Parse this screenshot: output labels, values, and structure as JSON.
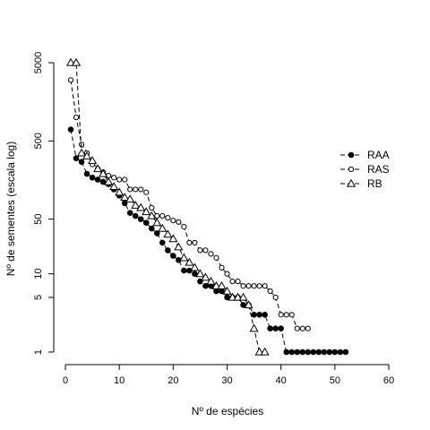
{
  "chart_data": {
    "type": "scatter",
    "xlabel": "Nº de espécies",
    "ylabel": "Nº de sementes (escala log)",
    "xlim": [
      0,
      62
    ],
    "ylim": [
      0.8,
      7000
    ],
    "log_y": true,
    "x_ticks": [
      0,
      10,
      20,
      30,
      40,
      50,
      60
    ],
    "y_ticks": [
      1,
      5,
      10,
      50,
      500,
      5000
    ],
    "grid": false,
    "legend_position": "right",
    "series": [
      {
        "name": "RAA",
        "marker": "filled-circle",
        "x": [
          1,
          2,
          3,
          4,
          5,
          6,
          7,
          8,
          9,
          10,
          11,
          12,
          13,
          14,
          15,
          16,
          17,
          18,
          19,
          20,
          21,
          22,
          23,
          24,
          25,
          26,
          27,
          28,
          29,
          30,
          31,
          32,
          33,
          34,
          35,
          36,
          37,
          38,
          39,
          40,
          41,
          42,
          43,
          44,
          45,
          46,
          47,
          48,
          49,
          50,
          51,
          52
        ],
        "y": [
          700,
          300,
          270,
          190,
          170,
          160,
          150,
          140,
          120,
          100,
          80,
          60,
          55,
          50,
          45,
          38,
          33,
          25,
          20,
          17,
          15,
          11,
          11,
          10,
          8,
          7,
          7,
          6,
          6,
          5,
          5,
          5,
          4,
          4,
          3,
          3,
          3,
          2,
          2,
          2,
          1,
          1,
          1,
          1,
          1,
          1,
          1,
          1,
          1,
          1,
          1,
          1
        ]
      },
      {
        "name": "RAS",
        "marker": "open-circle",
        "x": [
          1,
          2,
          3,
          4,
          5,
          6,
          7,
          8,
          9,
          10,
          11,
          12,
          13,
          14,
          15,
          16,
          17,
          18,
          19,
          20,
          21,
          22,
          23,
          24,
          25,
          26,
          27,
          28,
          29,
          30,
          31,
          32,
          33,
          34,
          35,
          36,
          37,
          38,
          39,
          40,
          41,
          42,
          43,
          44,
          45
        ],
        "y": [
          3000,
          1000,
          450,
          350,
          250,
          220,
          200,
          180,
          170,
          160,
          160,
          120,
          120,
          120,
          110,
          70,
          55,
          55,
          52,
          48,
          46,
          40,
          25,
          25,
          20,
          20,
          18,
          16,
          12,
          10,
          8,
          8,
          7,
          7,
          7,
          7,
          7,
          6,
          5,
          3,
          3,
          3,
          2,
          2,
          2
        ]
      },
      {
        "name": "RB",
        "marker": "open-triangle",
        "x": [
          1,
          2,
          3,
          4,
          5,
          6,
          7,
          8,
          9,
          10,
          11,
          12,
          13,
          14,
          15,
          16,
          17,
          18,
          19,
          20,
          21,
          22,
          23,
          24,
          25,
          26,
          27,
          28,
          29,
          30,
          31,
          32,
          33,
          34,
          35,
          36,
          37
        ],
        "y": [
          5000,
          5000,
          350,
          320,
          280,
          220,
          190,
          150,
          130,
          110,
          95,
          90,
          75,
          70,
          62,
          55,
          45,
          38,
          32,
          28,
          22,
          16,
          14,
          12,
          10,
          9,
          8,
          7,
          7,
          6,
          5,
          5,
          5,
          4,
          2,
          1,
          1
        ]
      }
    ]
  }
}
